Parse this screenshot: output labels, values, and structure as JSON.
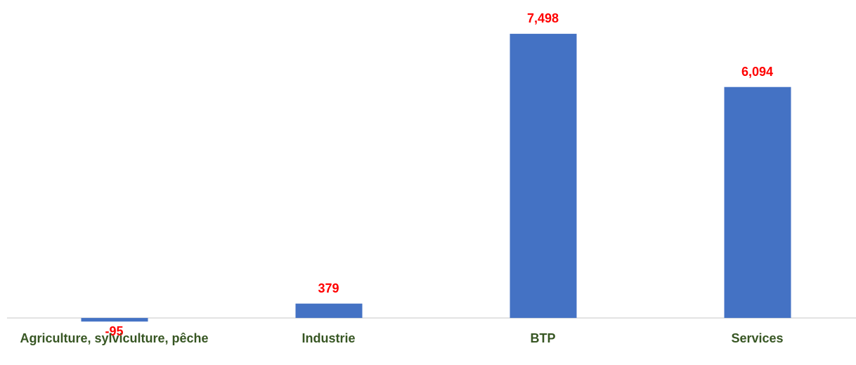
{
  "chart_data": {
    "type": "bar",
    "categories": [
      "Agriculture, sylviculture, pêche",
      "Industrie",
      "BTP",
      "Services"
    ],
    "values": [
      -95,
      379,
      7498,
      6094
    ],
    "value_labels": [
      "-95",
      "379",
      "7,498",
      "6,094"
    ],
    "color": "#4472c4",
    "label_color": "#ff0000",
    "category_color": "#375623",
    "ylim": [
      -1000,
      8000
    ],
    "grid": false
  }
}
